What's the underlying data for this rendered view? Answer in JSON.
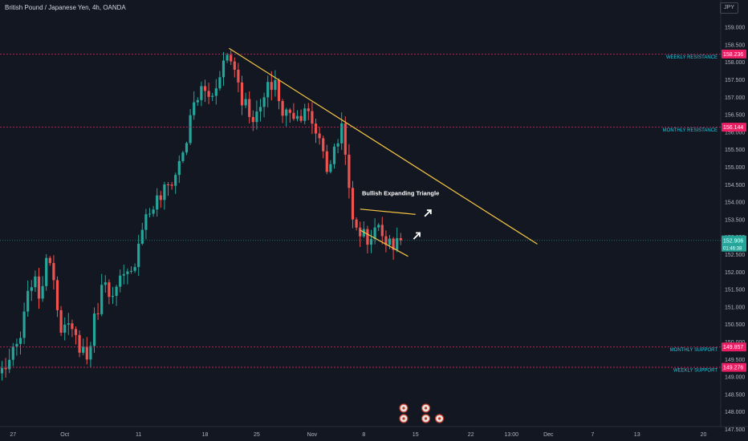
{
  "header": {
    "title": "British Pound / Japanese Yen, 4h, OANDA",
    "currency": "JPY"
  },
  "colors": {
    "background": "#131722",
    "up": "#26a69a",
    "down": "#ef5350",
    "trendline": "#f5c542",
    "level_line": "#e0245e",
    "level_label_bg": "#e91e63",
    "annotation_text": "#26c6da",
    "axis_text": "#b2b5be",
    "current_price_bg": "#26a69a"
  },
  "chart_data": {
    "type": "candlestick",
    "ylim": [
      147.0,
      159.5
    ],
    "y_ticks": [
      "147.500",
      "148.000",
      "148.500",
      "149.000",
      "149.500",
      "150.000",
      "150.500",
      "151.000",
      "151.500",
      "152.000",
      "152.500",
      "153.000",
      "153.500",
      "154.000",
      "154.500",
      "155.000",
      "155.500",
      "156.000",
      "156.500",
      "157.000",
      "157.500",
      "158.000",
      "158.500",
      "159.000"
    ],
    "x_ticks": [
      {
        "label": "27",
        "bar": 3
      },
      {
        "label": "Oct",
        "bar": 17
      },
      {
        "label": "11",
        "bar": 37
      },
      {
        "label": "18",
        "bar": 55
      },
      {
        "label": "25",
        "bar": 69
      },
      {
        "label": "Nov",
        "bar": 84
      },
      {
        "label": "8",
        "bar": 98
      },
      {
        "label": "15",
        "bar": 112
      },
      {
        "label": "22",
        "bar": 127
      },
      {
        "label": "13:00",
        "bar": 138
      },
      {
        "label": "Dec",
        "bar": 148
      },
      {
        "label": "7",
        "bar": 160
      },
      {
        "label": "13",
        "bar": 172
      },
      {
        "label": "20",
        "bar": 190
      }
    ],
    "anchors": [
      {
        "bar": 0,
        "price": 149.2
      },
      {
        "bar": 3,
        "price": 149.6
      },
      {
        "bar": 5,
        "price": 150.1
      },
      {
        "bar": 8,
        "price": 151.8
      },
      {
        "bar": 10,
        "price": 151.4
      },
      {
        "bar": 13,
        "price": 152.5
      },
      {
        "bar": 16,
        "price": 150.5
      },
      {
        "bar": 19,
        "price": 150.2
      },
      {
        "bar": 22,
        "price": 149.8
      },
      {
        "bar": 23,
        "price": 149.5
      },
      {
        "bar": 25,
        "price": 150.6
      },
      {
        "bar": 28,
        "price": 151.9
      },
      {
        "bar": 30,
        "price": 151.2
      },
      {
        "bar": 32,
        "price": 151.7
      },
      {
        "bar": 35,
        "price": 151.9
      },
      {
        "bar": 38,
        "price": 153.4
      },
      {
        "bar": 41,
        "price": 153.9
      },
      {
        "bar": 44,
        "price": 154.3
      },
      {
        "bar": 47,
        "price": 154.8
      },
      {
        "bar": 50,
        "price": 155.8
      },
      {
        "bar": 52,
        "price": 156.8
      },
      {
        "bar": 54,
        "price": 157.2
      },
      {
        "bar": 57,
        "price": 157.0
      },
      {
        "bar": 59,
        "price": 157.8
      },
      {
        "bar": 61,
        "price": 158.2
      },
      {
        "bar": 63,
        "price": 157.9
      },
      {
        "bar": 65,
        "price": 157.0
      },
      {
        "bar": 67,
        "price": 156.6
      },
      {
        "bar": 69,
        "price": 156.4
      },
      {
        "bar": 72,
        "price": 157.2
      },
      {
        "bar": 74,
        "price": 157.5
      },
      {
        "bar": 76,
        "price": 156.4
      },
      {
        "bar": 78,
        "price": 156.7
      },
      {
        "bar": 80,
        "price": 156.4
      },
      {
        "bar": 82,
        "price": 156.8
      },
      {
        "bar": 84,
        "price": 156.1
      },
      {
        "bar": 86,
        "price": 155.9
      },
      {
        "bar": 88,
        "price": 155.0
      },
      {
        "bar": 90,
        "price": 155.4
      },
      {
        "bar": 92,
        "price": 156.2
      },
      {
        "bar": 93,
        "price": 155.6
      },
      {
        "bar": 94,
        "price": 154.2
      },
      {
        "bar": 95,
        "price": 153.4
      },
      {
        "bar": 97,
        "price": 153.2
      },
      {
        "bar": 99,
        "price": 152.9
      },
      {
        "bar": 101,
        "price": 153.3
      },
      {
        "bar": 103,
        "price": 153.1
      },
      {
        "bar": 105,
        "price": 153.0
      },
      {
        "bar": 107,
        "price": 152.7
      },
      {
        "bar": 108,
        "price": 152.9
      }
    ],
    "levels": [
      {
        "name": "WEEKLY RESISTANCE",
        "price": 158.236,
        "label": "158.236"
      },
      {
        "name": "MONTHLY RESISTANCE",
        "price": 156.144,
        "label": "156.144"
      },
      {
        "name": "MONTHLY SUPPORT",
        "price": 149.857,
        "label": "149.857"
      },
      {
        "name": "WEEKLY SUPPORT",
        "price": 149.276,
        "label": "149.276"
      }
    ],
    "current_price": {
      "price": 152.906,
      "label": "152.906",
      "countdown": "01:46:38"
    },
    "trendlines": [
      {
        "from": {
          "bar": 61.5,
          "price": 158.4
        },
        "to": {
          "bar": 145,
          "price": 152.8
        }
      },
      {
        "from": {
          "bar": 97,
          "price": 153.8
        },
        "to": {
          "bar": 112,
          "price": 153.65
        }
      },
      {
        "from": {
          "bar": 97,
          "price": 153.2
        },
        "to": {
          "bar": 110,
          "price": 152.45
        }
      }
    ],
    "annotation": {
      "text": "Bullish Expanding Triangle",
      "bar": 97.5,
      "price": 154.2
    },
    "arrows": [
      {
        "bar": 112.5,
        "price": 153.05
      },
      {
        "bar": 115.5,
        "price": 153.7
      }
    ],
    "event_icons": [
      {
        "bar": 108.8,
        "row": 0
      },
      {
        "bar": 114.8,
        "row": 0
      },
      {
        "bar": 108.8,
        "row": 1
      },
      {
        "bar": 114.8,
        "row": 1
      },
      {
        "bar": 118.5,
        "row": 1
      }
    ]
  }
}
